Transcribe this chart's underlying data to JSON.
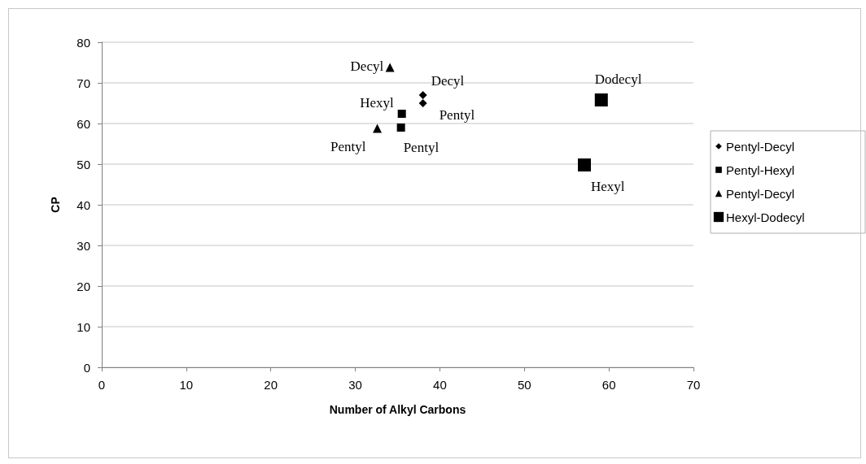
{
  "chart_data": {
    "type": "scatter",
    "xlabel": "Number of Alkyl Carbons",
    "ylabel": "CP",
    "series": [
      {
        "name": "Pentyl-Decyl",
        "color": "#000000",
        "marker": "diamond",
        "x": [
          38,
          38
        ],
        "values": [
          67,
          65
        ]
      },
      {
        "name": "Pentyl-Hexyl",
        "color": "#000000",
        "marker": "square",
        "x": [
          35.5,
          35.4
        ],
        "values": [
          62.4,
          59
        ]
      },
      {
        "name": "Pentyl-Decyl",
        "color": "#000000",
        "marker": "triangle",
        "x": [
          34.1,
          32.6
        ],
        "values": [
          73.8,
          58.8
        ]
      },
      {
        "name": "Hexyl-Dodecyl",
        "color": "#000000",
        "marker": "square",
        "x": [
          59.1,
          57.1
        ],
        "values": [
          65.8,
          49.8
        ]
      }
    ],
    "annotations": [
      {
        "text": "Decyl",
        "x": 38,
        "y": 67
      },
      {
        "text": "Pentyl",
        "x": 38,
        "y": 65
      },
      {
        "text": "Hexyl",
        "x": 35.5,
        "y": 62.4
      },
      {
        "text": "Pentyl",
        "x": 35.4,
        "y": 59
      },
      {
        "text": "Decyl",
        "x": 34.1,
        "y": 73.8
      },
      {
        "text": "Pentyl",
        "x": 32.6,
        "y": 58.8
      },
      {
        "text": "Dodecyl",
        "x": 59.1,
        "y": 65.8
      },
      {
        "text": "Hexyl",
        "x": 57.1,
        "y": 49.8
      }
    ],
    "xlim": [
      0,
      70
    ],
    "xticks": [
      0,
      10,
      20,
      30,
      40,
      50,
      60,
      70
    ],
    "ylim": [
      0,
      80
    ],
    "yticks": [
      0,
      10,
      20,
      30,
      40,
      50,
      60,
      70,
      80
    ],
    "grid": "y",
    "legend": "right"
  }
}
